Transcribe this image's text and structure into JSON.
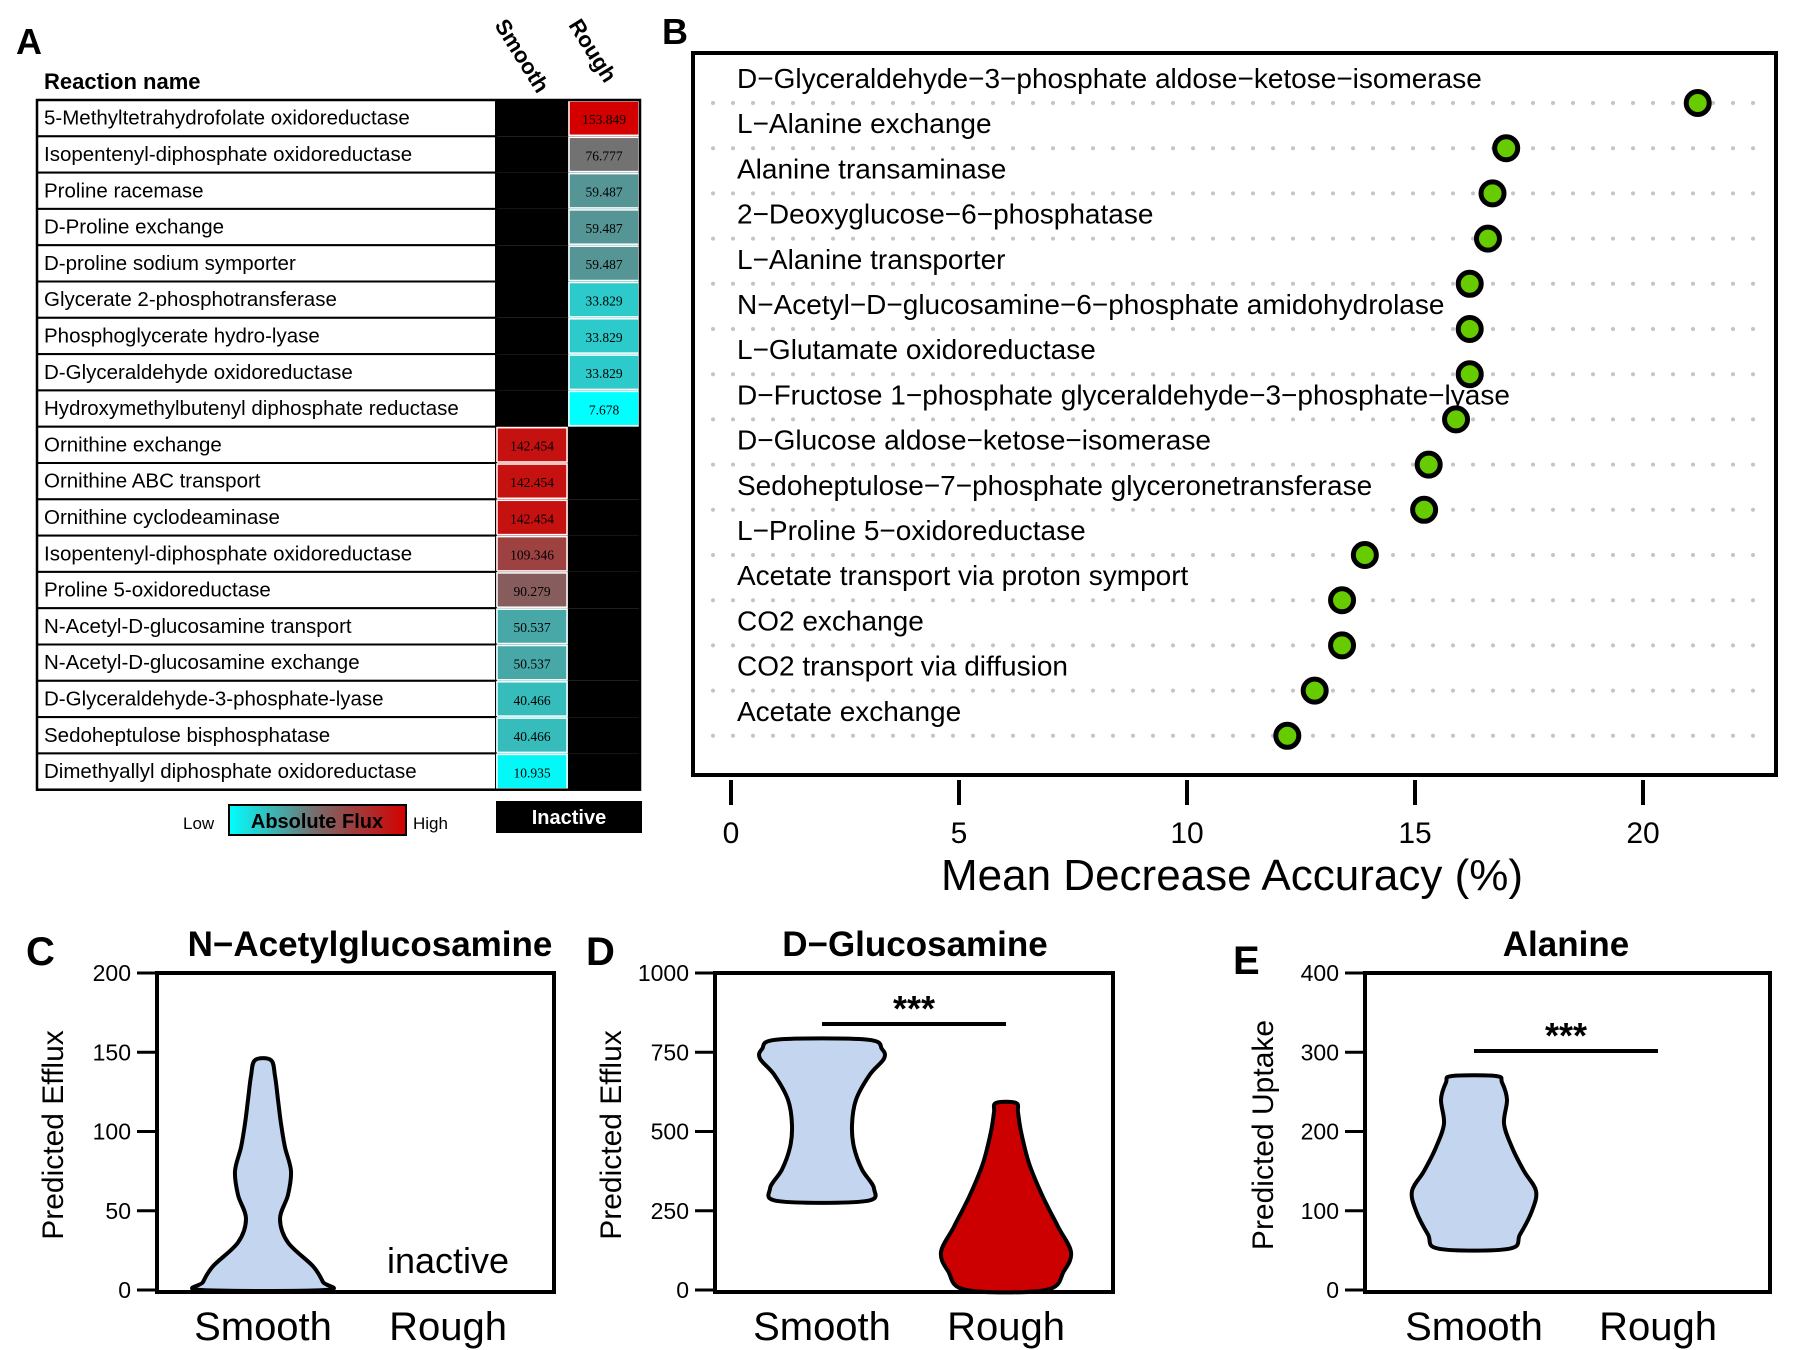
{
  "panels": {
    "a": "A",
    "b": "B",
    "c": "C",
    "d": "D",
    "e": "E"
  },
  "colors": {
    "flux_low": "#00ffff",
    "flux_mid": "#7a6a6a",
    "flux_high": "#d40000",
    "inactive": "#000000",
    "smooth_fill": "#c3d5ef",
    "rough_fill": "#cc0000",
    "dot_fill": "#66cc00"
  },
  "chart_data": [
    {
      "type": "heatmap",
      "panel": "A",
      "row_header": "Reaction name",
      "columns": [
        "Smooth",
        "Rough"
      ],
      "rows": [
        {
          "name": "5-Methyltetrahydrofolate oxidoreductase",
          "smooth": null,
          "rough": 153.849
        },
        {
          "name": "Isopentenyl-diphosphate oxidoreductase",
          "smooth": null,
          "rough": 76.777
        },
        {
          "name": "Proline racemase",
          "smooth": null,
          "rough": 59.487
        },
        {
          "name": "D-Proline exchange",
          "smooth": null,
          "rough": 59.487
        },
        {
          "name": "D-proline sodium symporter",
          "smooth": null,
          "rough": 59.487
        },
        {
          "name": "Glycerate 2-phosphotransferase",
          "smooth": null,
          "rough": 33.829
        },
        {
          "name": "Phosphoglycerate hydro-lyase",
          "smooth": null,
          "rough": 33.829
        },
        {
          "name": "D-Glyceraldehyde oxidoreductase",
          "smooth": null,
          "rough": 33.829
        },
        {
          "name": "Hydroxymethylbutenyl diphosphate reductase",
          "smooth": null,
          "rough": 7.678
        },
        {
          "name": "Ornithine exchange",
          "smooth": 142.454,
          "rough": null
        },
        {
          "name": "Ornithine ABC transport",
          "smooth": 142.454,
          "rough": null
        },
        {
          "name": "Ornithine cyclodeaminase",
          "smooth": 142.454,
          "rough": null
        },
        {
          "name": "Isopentenyl-diphosphate oxidoreductase",
          "smooth": 109.346,
          "rough": null
        },
        {
          "name": "Proline 5-oxidoreductase",
          "smooth": 90.279,
          "rough": null
        },
        {
          "name": "N-Acetyl-D-glucosamine transport",
          "smooth": 50.537,
          "rough": null
        },
        {
          "name": "N-Acetyl-D-glucosamine exchange",
          "smooth": 50.537,
          "rough": null
        },
        {
          "name": "D-Glyceraldehyde-3-phosphate-lyase",
          "smooth": 40.466,
          "rough": null
        },
        {
          "name": "Sedoheptulose bisphosphatase",
          "smooth": 40.466,
          "rough": null
        },
        {
          "name": "Dimethyallyl diphosphate oxidoreductase",
          "smooth": 10.935,
          "rough": null
        }
      ],
      "legend": {
        "low": "Low",
        "title": "Absolute Flux",
        "high": "High",
        "inactive": "Inactive"
      }
    },
    {
      "type": "scatter",
      "panel": "B",
      "xlabel": "Mean Decrease Accuracy (%)",
      "xlim": [
        0,
        23
      ],
      "xticks": [
        0,
        5,
        10,
        15,
        20
      ],
      "items": [
        {
          "label": "D−Glyceraldehyde−3−phosphate aldose−ketose−isomerase",
          "value": 21.2
        },
        {
          "label": "L−Alanine exchange",
          "value": 17.0
        },
        {
          "label": "Alanine transaminase",
          "value": 16.7
        },
        {
          "label": "2−Deoxyglucose−6−phosphatase",
          "value": 16.6
        },
        {
          "label": "L−Alanine transporter",
          "value": 16.2
        },
        {
          "label": "N−Acetyl−D−glucosamine−6−phosphate amidohydrolase",
          "value": 16.2
        },
        {
          "label": "L−Glutamate oxidoreductase",
          "value": 16.2
        },
        {
          "label": "D−Fructose 1−phosphate glyceraldehyde−3−phosphate−lyase",
          "value": 15.9
        },
        {
          "label": "D−Glucose aldose−ketose−isomerase",
          "value": 15.3
        },
        {
          "label": "Sedoheptulose−7−phosphate glyceronetransferase",
          "value": 15.2
        },
        {
          "label": "L−Proline 5−oxidoreductase",
          "value": 13.9
        },
        {
          "label": "Acetate transport via proton symport",
          "value": 13.4
        },
        {
          "label": "CO2 exchange",
          "value": 13.4
        },
        {
          "label": "CO2 transport via diffusion",
          "value": 12.8
        },
        {
          "label": "Acetate exchange",
          "value": 12.2
        }
      ]
    },
    {
      "type": "violin",
      "panel": "C",
      "title": "N−Acetylglucosamine",
      "ylabel": "Predicted Efflux",
      "ylim": [
        0,
        200
      ],
      "yticks": [
        0,
        50,
        100,
        150,
        200
      ],
      "categories": [
        "Smooth",
        "Rough"
      ],
      "smooth": {
        "min": 0,
        "max": 145,
        "profile": [
          [
            0,
            62
          ],
          [
            5,
            60
          ],
          [
            15,
            50
          ],
          [
            30,
            25
          ],
          [
            45,
            17
          ],
          [
            60,
            25
          ],
          [
            75,
            28
          ],
          [
            90,
            22
          ],
          [
            105,
            18
          ],
          [
            120,
            15
          ],
          [
            135,
            12
          ],
          [
            145,
            8
          ]
        ]
      },
      "rough": {
        "inactive": true,
        "label": "inactive"
      }
    },
    {
      "type": "violin",
      "panel": "D",
      "title": "D−Glucosamine",
      "ylabel": "Predicted Efflux",
      "ylim": [
        0,
        1000
      ],
      "yticks": [
        0,
        250,
        500,
        750,
        1000
      ],
      "categories": [
        "Smooth",
        "Rough"
      ],
      "significance": "***",
      "smooth": {
        "min": 280,
        "max": 790,
        "profile": [
          [
            280,
            43
          ],
          [
            320,
            52
          ],
          [
            380,
            40
          ],
          [
            450,
            32
          ],
          [
            520,
            30
          ],
          [
            600,
            34
          ],
          [
            680,
            48
          ],
          [
            730,
            62
          ],
          [
            760,
            60
          ],
          [
            790,
            45
          ]
        ]
      },
      "rough": {
        "min": 0,
        "max": 590,
        "profile": [
          [
            0,
            40
          ],
          [
            60,
            58
          ],
          [
            120,
            65
          ],
          [
            200,
            52
          ],
          [
            300,
            36
          ],
          [
            400,
            23
          ],
          [
            500,
            15
          ],
          [
            560,
            12
          ],
          [
            590,
            10
          ]
        ]
      }
    },
    {
      "type": "violin",
      "panel": "E",
      "title": "Alanine",
      "ylabel": "Predicted Uptake",
      "ylim": [
        0,
        400
      ],
      "yticks": [
        0,
        100,
        200,
        300,
        400
      ],
      "categories": [
        "Smooth",
        "Rough"
      ],
      "significance": "***",
      "smooth": {
        "min": 52,
        "max": 270,
        "profile": [
          [
            52,
            35
          ],
          [
            70,
            46
          ],
          [
            100,
            58
          ],
          [
            125,
            62
          ],
          [
            150,
            50
          ],
          [
            180,
            38
          ],
          [
            210,
            30
          ],
          [
            240,
            33
          ],
          [
            262,
            28
          ],
          [
            270,
            22
          ]
        ]
      },
      "rough": {
        "min": 0,
        "max": 0,
        "profile": []
      }
    }
  ]
}
